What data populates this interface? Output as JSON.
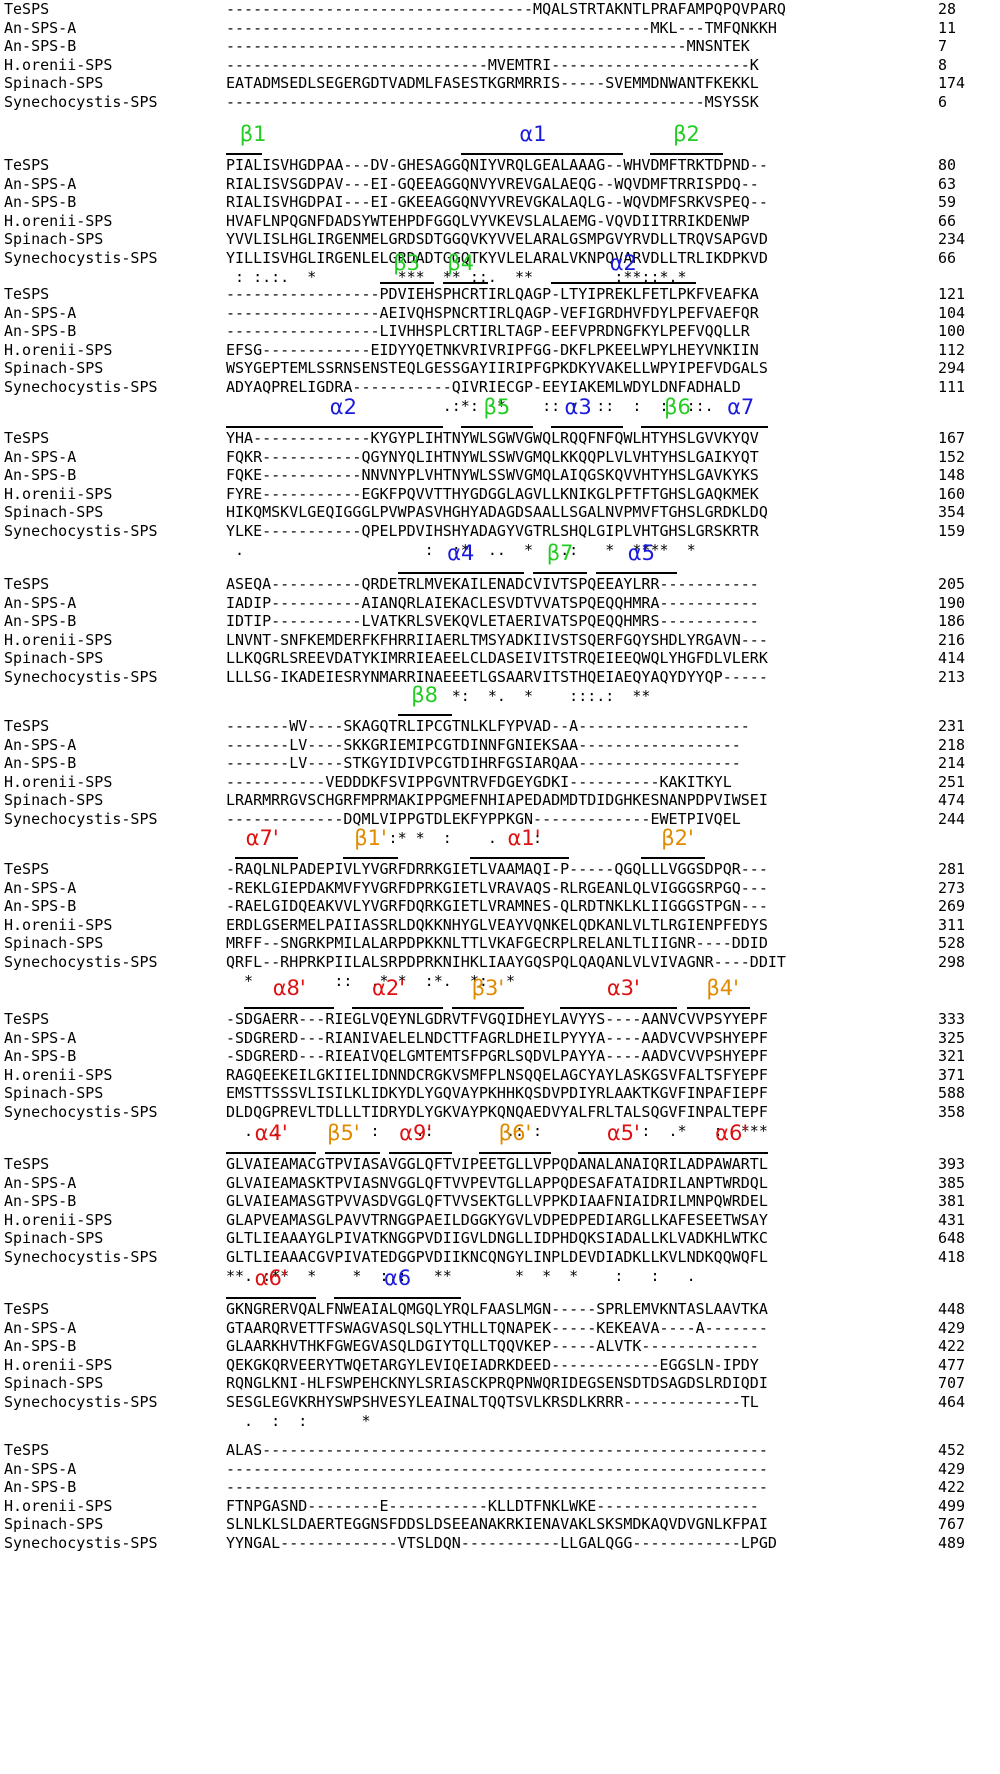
{
  "colors": {
    "beta": "#22cc22",
    "alpha": "#1a1adb",
    "alpha_prime": "#dd1111",
    "beta_prime": "#e08a00"
  },
  "blocks": [
    {
      "labels": [],
      "rows": [
        {
          "name": "TeSPS",
          "seq": "----------------------------------MQALSTRTAKNTLPRAFAMPQPQVPARQ",
          "num": "28"
        },
        {
          "name": "An-SPS-A",
          "seq": "-----------------------------------------------MKL---TMFQNKKH",
          "num": "11"
        },
        {
          "name": "An-SPS-B",
          "seq": "---------------------------------------------------MNSNTEK",
          "num": "7"
        },
        {
          "name": "H.orenii-SPS",
          "seq": "-----------------------------MVEMTRI----------------------K",
          "num": "8"
        },
        {
          "name": "Spinach-SPS",
          "seq": "EATADMSEDLSEGERGDTVADMLFASESTKGRMRRIS-----SVEMMDNWANTFKEKKL",
          "num": "174"
        },
        {
          "name": "Synechocystis-SPS",
          "seq": "-----------------------------------------------------MSYSSK",
          "num": "6"
        }
      ],
      "consensus": ""
    },
    {
      "labels": [
        {
          "text": "β1",
          "type": "beta",
          "col": 3,
          "start": 0,
          "end": 4
        },
        {
          "text": "α1",
          "type": "alpha",
          "col": 34,
          "start": 26,
          "end": 44
        },
        {
          "text": "β2",
          "type": "beta",
          "col": 51,
          "start": 47,
          "end": 55
        }
      ],
      "rows": [
        {
          "name": "TeSPS",
          "seq": "PIALISVHGDPAA---DV-GHESAGGQNIYVRQLGEALAAAG--WHVDMFTRKTDPND--",
          "num": "80"
        },
        {
          "name": "An-SPS-A",
          "seq": "RIALISVSGDPAV---EI-GQEEAGGQNVYVREVGALAEQG--WQVDMFTRRISPDQ--",
          "num": "63"
        },
        {
          "name": "An-SPS-B",
          "seq": "RIALISVHGDPAI---EI-GKEEAGGQNVYVREVGKALAQLG--WQVDMFSRKVSPEQ--",
          "num": "59"
        },
        {
          "name": "H.orenii-SPS",
          "seq": "HVAFLNPQGNFDADSYWTEHPDFGGQLVYVKEVSLALAEMG-VQVDIITRRIKDENWP",
          "num": "66"
        },
        {
          "name": "Spinach-SPS",
          "seq": "YVVLISLHGLIRGENMELGRDSDTGGQVKYVVELARALGSMPGVYRVDLLTRQVSAPGVD",
          "num": "234"
        },
        {
          "name": "Synechocystis-SPS",
          "seq": "YILLISVHGLIRGENLELGRDADTGGQTKYVLELARALVKNPQVARVDLLTRLIKDPKVD",
          "num": "66"
        }
      ],
      "consensus": " : :.:.  *         ***  ** ::.  **         :**::*.*"
    },
    {
      "labels": [
        {
          "text": "β3",
          "type": "beta",
          "col": 20,
          "start": 17,
          "end": 23
        },
        {
          "text": "β4",
          "type": "beta",
          "col": 26,
          "start": 24,
          "end": 29
        },
        {
          "text": "α2",
          "type": "alpha",
          "col": 44,
          "start": 36,
          "end": 52
        }
      ],
      "rows": [
        {
          "name": "TeSPS",
          "seq": "-----------------PDVIEHSPHCRTIRLQAGP-LTYIPREKLFETLPKFVEAFKA",
          "num": "121"
        },
        {
          "name": "An-SPS-A",
          "seq": "-----------------AEIVQHSPNCRTIRLQAGP-VEFIGRDHVFDYLPEFVAEFQR",
          "num": "104"
        },
        {
          "name": "An-SPS-B",
          "seq": "-----------------LIVHHSPLCRTIRLTAGP-EEFVPRDNGFKYLPEFVQQLLR",
          "num": "100"
        },
        {
          "name": "H.orenii-SPS",
          "seq": "EFSG------------EIDYYQETNKVRIVRIPFGG-DKFLPKEELWPYLHEYVNKIIN",
          "num": "112"
        },
        {
          "name": "Spinach-SPS",
          "seq": "WSYGEPTEMLSSRNSENSTEQLGESSGAYIIRIPFGPKDKYVAKELLWPYIPEFVDGALS",
          "num": "294"
        },
        {
          "name": "Synechocystis-SPS",
          "seq": "ADYAQPRELIGDRA-----------QIVRIECGP-EEYIAKEMLWDYLDNFADHALD",
          "num": "111"
        }
      ],
      "consensus": "                        .:*:  *    :: :  ::  :  :  ::."
    },
    {
      "labels": [
        {
          "text": "α2",
          "type": "alpha",
          "col": 13,
          "start": 0,
          "end": 24
        },
        {
          "text": "β5",
          "type": "beta",
          "col": 30,
          "start": 26,
          "end": 34
        },
        {
          "text": "α3",
          "type": "alpha",
          "col": 39,
          "start": 36,
          "end": 44
        },
        {
          "text": "β6",
          "type": "beta",
          "col": 50,
          "start": 46,
          "end": 54
        },
        {
          "text": "α7",
          "type": "alpha",
          "col": 57,
          "start": 54,
          "end": 60
        }
      ],
      "rows": [
        {
          "name": "TeSPS",
          "seq": "YHA-------------KYGYPLIHTNYWLSGWVGWQLRQQFNFQWLHTYHSLGVVKYQV",
          "num": "167"
        },
        {
          "name": "An-SPS-A",
          "seq": "FQKR-----------QGYNYQLIHTNYWLSSWVGMQLKKQQPLVLVHTYHSLGAIKYQT",
          "num": "152"
        },
        {
          "name": "An-SPS-B",
          "seq": "FQKE-----------NNVNYPLVHTNYWLSSWVGMQLAIQGSKQVVHTYHSLGAVKYKS",
          "num": "148"
        },
        {
          "name": "H.orenii-SPS",
          "seq": "FYRE-----------EGKFPQVVTTHYGDGGLAGVLLKNIKGLPFTFTGHSLGAQKMEK",
          "num": "160"
        },
        {
          "name": "Spinach-SPS",
          "seq": "HIKQMSKVLGEQIGGGLPVWPASVHGHYADAGDSAALLSGALNVPMVFTGHSLGRDKLDQ",
          "num": "354"
        },
        {
          "name": "Synechocystis-SPS",
          "seq": "YLKE-----------QPELPDVIHSHYADAGYVGTRLSHQLGIPLVHTGHSLGRSKRTR",
          "num": "159"
        }
      ],
      "consensus": " .                    :  :*  ..  *   .:   *  ****  *"
    },
    {
      "labels": [
        {
          "text": "α4",
          "type": "alpha",
          "col": 26,
          "start": 19,
          "end": 33
        },
        {
          "text": "β7",
          "type": "beta",
          "col": 37,
          "start": 34,
          "end": 40
        },
        {
          "text": "α5",
          "type": "alpha",
          "col": 46,
          "start": 41,
          "end": 50
        }
      ],
      "rows": [
        {
          "name": "TeSPS",
          "seq": "ASEQA----------QRDETRLMVEKAILENADCVIVTSPQEEAYLRR-----------",
          "num": "205"
        },
        {
          "name": "An-SPS-A",
          "seq": "IADIP----------AIANQRLAIEKACLESVDTVVATSPQEQQHMRA-----------",
          "num": "190"
        },
        {
          "name": "An-SPS-B",
          "seq": "IDTIP----------LVATKRLSVEKQVLETAERIVATSPQEQQHMRS-----------",
          "num": "186"
        },
        {
          "name": "H.orenii-SPS",
          "seq": "LNVNT-SNFKEMDERFKFHRRIIAERLTMSYADKIIVSTSQERFGQYSHDLYRGAVN---",
          "num": "216"
        },
        {
          "name": "Spinach-SPS",
          "seq": "LLKQGRLSREEVDATYKIMRRIEAEELCLDASEIVITSTRQEIEEQWQLYHGFDLVLERK",
          "num": "414"
        },
        {
          "name": "Synechocystis-SPS",
          "seq": "LLLSG-IKADEIESRYNMARRINAEEETLGSAARVITSTHQEIAEQYAQYDYYQP-----",
          "num": "213"
        }
      ],
      "consensus": "                         *:  *.  *    :::.:  **"
    },
    {
      "labels": [
        {
          "text": "β8",
          "type": "beta",
          "col": 22,
          "start": 19,
          "end": 25
        }
      ],
      "rows": [
        {
          "name": "TeSPS",
          "seq": "-------WV----SKAGQTRLIPCGTNLKLFYPVAD--A-------------------",
          "num": "231"
        },
        {
          "name": "An-SPS-A",
          "seq": "-------LV----SKKGRIEMIPCGTDINNFGNIEKSAA------------------",
          "num": "218"
        },
        {
          "name": "An-SPS-B",
          "seq": "-------LV----STKGYIDIVPCGTDIHRFGSIARQAA------------------",
          "num": "214"
        },
        {
          "name": "H.orenii-SPS",
          "seq": "-----------VEDDDKFSVIPPGVNTRVFDGEYGDKI----------KAKITKYL",
          "num": "251"
        },
        {
          "name": "Spinach-SPS",
          "seq": "LRARMRRGVSCHGRFMPRMAKIPPGMEFNHIAPEDADMDTDIDGHKESNANPDPVIWSEI",
          "num": "474"
        },
        {
          "name": "Synechocystis-SPS",
          "seq": "-------------DQMLVIPPGTDLEKFYPPKGN-------------EWETPIVQEL",
          "num": "244"
        }
      ],
      "consensus": "                  :* *  :    .    :"
    },
    {
      "labels": [
        {
          "text": "α7'",
          "type": "alpha_prime",
          "col": 4,
          "start": 1,
          "end": 8
        },
        {
          "text": "β1'",
          "type": "beta_prime",
          "col": 16,
          "start": 13,
          "end": 19
        },
        {
          "text": "α1'",
          "type": "alpha_prime",
          "col": 33,
          "start": 27,
          "end": 38
        },
        {
          "text": "β2'",
          "type": "beta_prime",
          "col": 50,
          "start": 46,
          "end": 53
        }
      ],
      "rows": [
        {
          "name": "TeSPS",
          "seq": "-RAQLNLPADEPIVLYVGRFDRRKGIETLVAAMAQI-P-----QGQLLLVGGSDPQR---",
          "num": "281"
        },
        {
          "name": "An-SPS-A",
          "seq": "-REKLGIEPDAKMVFYVGRFDPRKGIETLVRAVAQS-RLRGEANLQLVIGGGSRPGQ---",
          "num": "273"
        },
        {
          "name": "An-SPS-B",
          "seq": "-RAELGIDQEAKVVLYVGRFDQRKGIETLVRAMNES-QLRDTNKLKLIIGGGSTPGN---",
          "num": "269"
        },
        {
          "name": "H.orenii-SPS",
          "seq": "ERDLGSERMELPAIIASSRLDQKKNHYGLVEAYVQNKELQDKANLVLTLRGIENPFEDYS",
          "num": "311"
        },
        {
          "name": "Spinach-SPS",
          "seq": "MRFF--SNGRKPMILALARPDPKKNLTTLVKAFGECRPLRELANLTLIIGNR----DDID",
          "num": "528"
        },
        {
          "name": "Synechocystis-SPS",
          "seq": "QRFL--RHPRKPIILALSRPDPRKNIHKLIAAYGQSPQLQAQANLVLVIVAGNR----DDIT",
          "num": "298"
        }
      ],
      "consensus": "  *         ::  .* *  :*.  *:  *"
    },
    {
      "labels": [
        {
          "text": "α8'",
          "type": "alpha_prime",
          "col": 7,
          "start": 2,
          "end": 12
        },
        {
          "text": "α2'",
          "type": "alpha_prime",
          "col": 18,
          "start": 14,
          "end": 24
        },
        {
          "text": "β3'",
          "type": "beta_prime",
          "col": 29,
          "start": 25,
          "end": 33
        },
        {
          "text": "α3'",
          "type": "alpha_prime",
          "col": 44,
          "start": 37,
          "end": 50
        },
        {
          "text": "β4'",
          "type": "beta_prime",
          "col": 55,
          "start": 51,
          "end": 58
        }
      ],
      "rows": [
        {
          "name": "TeSPS",
          "seq": "-SDGAERR---RIEGLVQEYNLGDRVTFVGQIDHEYLAVYYS----AANVCVVPSYYEPF",
          "num": "333"
        },
        {
          "name": "An-SPS-A",
          "seq": "-SDGRERD---RIANIVAELELNDCTTFAGRLDHEILPYYYA----AADVCVVPSHYEPF",
          "num": "325"
        },
        {
          "name": "An-SPS-B",
          "seq": "-SDGRERD---RIEAIVQELGMTEMTSFPGRLSQDVLPAYYA----AADVCVVPSHYEPF",
          "num": "321"
        },
        {
          "name": "H.orenii-SPS",
          "seq": "RAGQEEKEILGKIIELIDNNDCRGKVSMFPLNSQQELAGCYAYLASKGSVFALTSFYEPF",
          "num": "371"
        },
        {
          "name": "Spinach-SPS",
          "seq": "EMSTTSSSVLISILKLIDKYDLYGQVAYPKHHKQSDVPDIYRLAAKTKGVFINPAFIEPF",
          "num": "588"
        },
        {
          "name": "Synechocystis-SPS",
          "seq": "DLDQGPREVLTDLLLTIDRYDLYGKVAYPKQNQAEDVYALFRLTALSQGVFINPALTEPF",
          "num": "358"
        }
      ],
      "consensus": "  .  .          :    .:        .: :           :  .*   :  ***"
    },
    {
      "labels": [
        {
          "text": "α4'",
          "type": "alpha_prime",
          "col": 5,
          "start": 0,
          "end": 10
        },
        {
          "text": "β5'",
          "type": "beta_prime",
          "col": 13,
          "start": 11,
          "end": 17
        },
        {
          "text": "α9'",
          "type": "alpha_prime",
          "col": 21,
          "start": 18,
          "end": 25
        },
        {
          "text": "β6'",
          "type": "beta_prime",
          "col": 32,
          "start": 28,
          "end": 36
        },
        {
          "text": "α5'",
          "type": "alpha_prime",
          "col": 44,
          "start": 39,
          "end": 51
        },
        {
          "text": "α6'",
          "type": "alpha_prime",
          "col": 56,
          "start": 51,
          "end": 60
        }
      ],
      "rows": [
        {
          "name": "TeSPS",
          "seq": "GLVAIEAMACGTPVIASAVGGLQFTVIPEETGLLVPPQDANALANAIQRILADPAWARTL",
          "num": "393"
        },
        {
          "name": "An-SPS-A",
          "seq": "GLVAIEAMASKTPVIASNVGGLQFTVVPEVTGLLAPPQDESAFATAIDRILANPTWRDQL",
          "num": "385"
        },
        {
          "name": "An-SPS-B",
          "seq": "GLVAIEAMASGTPVVASDVGGLQFTVVSEKTGLLVPPKDIAAFNIAIDRILMNPQWRDEL",
          "num": "381"
        },
        {
          "name": "H.orenii-SPS",
          "seq": "GLAPVEAMASGLPAVVTRNGGPAEILDGGKYGVLVDPEDPEDIARGLLKAFESEETWSAY",
          "num": "431"
        },
        {
          "name": "Spinach-SPS",
          "seq": "GLTLIEAAAYGLPIVATKNGGPVDIIGVLDNGLLIDPHDQKSIADALLKLVADKHLWTKC",
          "num": "648"
        },
        {
          "name": "Synechocystis-SPS",
          "seq": "GLTLIEAAACGVPIVATEDGGPVDIIKNCQNGYLINPLDEVDIADKLLKVLNDKQQWQFL",
          "num": "418"
        }
      ],
      "consensus": "**. :**  *    *  :.:   **       *  *  *    :   :   ."
    },
    {
      "labels": [
        {
          "text": "α6'",
          "type": "alpha_prime",
          "col": 5,
          "start": 0,
          "end": 10
        },
        {
          "text": "α6",
          "type": "alpha",
          "col": 19,
          "start": 12,
          "end": 26
        }
      ],
      "rows": [
        {
          "name": "TeSPS",
          "seq": "GKNGRERVQALFNWEAIALQMGQLYRQLFAASLMGN-----SPRLEMVKNTASLAAVTKA",
          "num": "448"
        },
        {
          "name": "An-SPS-A",
          "seq": "GTAARQRVETTFSWAGVASQLSQLYTHLLTQNAPEK-----KEKEAVA----A-------",
          "num": "429"
        },
        {
          "name": "An-SPS-B",
          "seq": "GLAARKHVTHKFGWEGVASQLDGIYTQLLTQQVKEP-----ALVTK-------------",
          "num": "422"
        },
        {
          "name": "H.orenii-SPS",
          "seq": "QEKGKQRVEERYTWQETARGYLEVIQEIADRKDEED------------EGGSLN-IPDY",
          "num": "477"
        },
        {
          "name": "Spinach-SPS",
          "seq": "RQNGLKNI-HLFSWPEHCKNYLSRIASCKPRQPNWQRIDEGSENSDTDSAGDSLRDIQDI",
          "num": "707"
        },
        {
          "name": "Synechocystis-SPS",
          "seq": "SESGLEGVKRHYSWPSHVESYLEAINALTQQTSVLKRSDLKRRR-------------TL",
          "num": "464"
        }
      ],
      "consensus": "  .  :  :      *"
    },
    {
      "labels": [],
      "rows": [
        {
          "name": "TeSPS",
          "seq": "ALAS--------------------------------------------------------",
          "num": "452"
        },
        {
          "name": "An-SPS-A",
          "seq": "------------------------------------------------------------",
          "num": "429"
        },
        {
          "name": "An-SPS-B",
          "seq": "------------------------------------------------------------",
          "num": "422"
        },
        {
          "name": "H.orenii-SPS",
          "seq": "FTNPGASND--------E-----------KLLDTFNKLWKE------------------",
          "num": "499"
        },
        {
          "name": "Spinach-SPS",
          "seq": "SLNLKLSLDAERTEGGNSFDDSLDSEEANAKRKIENAVAKLSKSMDKAQVDVGNLKFPAI",
          "num": "767"
        },
        {
          "name": "Synechocystis-SPS",
          "seq": "YYNGAL-------------VTSLDQN-----------LLGALQGG------------LPGD",
          "num": "489"
        }
      ],
      "consensus": ""
    }
  ]
}
